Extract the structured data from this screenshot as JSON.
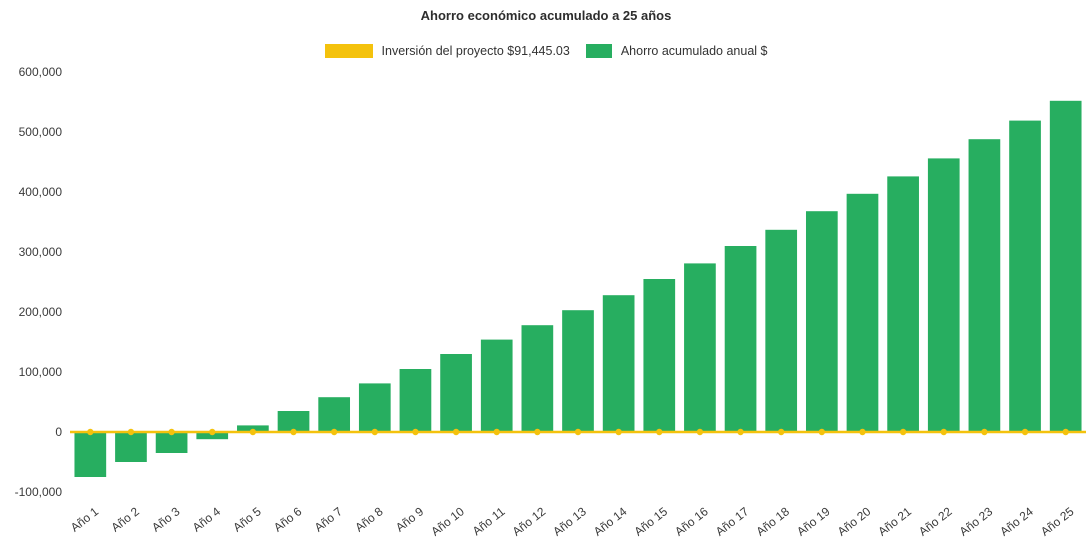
{
  "chart": {
    "title": "Ahorro económico acumulado a 25 años",
    "legend": [
      {
        "label": "Inversión del proyecto $91,445.03",
        "color": "#F4C20D",
        "type": "line"
      },
      {
        "label": "Ahorro acumulado anual $",
        "color": "#27AE60",
        "type": "bar"
      }
    ]
  },
  "chart_data": {
    "type": "bar",
    "title": "Ahorro económico acumulado a 25 años",
    "categories": [
      "Año 1",
      "Año 2",
      "Año 3",
      "Año 4",
      "Año 5",
      "Año 6",
      "Año 7",
      "Año 8",
      "Año 9",
      "Año 10",
      "Año 11",
      "Año 12",
      "Año 13",
      "Año 14",
      "Año 15",
      "Año 16",
      "Año 17",
      "Año 18",
      "Año 19",
      "Año 20",
      "Año 21",
      "Año 22",
      "Año 23",
      "Año 24",
      "Año 25"
    ],
    "series": [
      {
        "name": "Ahorro acumulado anual $",
        "type": "bar",
        "color": "#27AE60",
        "values": [
          -75000,
          -50000,
          -35000,
          -12000,
          11000,
          35000,
          58000,
          81000,
          105000,
          130000,
          154000,
          178000,
          203000,
          228000,
          255000,
          281000,
          310000,
          337000,
          368000,
          397000,
          426000,
          456000,
          488000,
          519000,
          552000
        ]
      },
      {
        "name": "Inversión del proyecto $91,445.03",
        "type": "line",
        "color": "#F4C20D",
        "marker": "circle",
        "values": [
          0,
          0,
          0,
          0,
          0,
          0,
          0,
          0,
          0,
          0,
          0,
          0,
          0,
          0,
          0,
          0,
          0,
          0,
          0,
          0,
          0,
          0,
          0,
          0,
          0
        ]
      }
    ],
    "xlabel": "",
    "ylabel": "",
    "ylim": [
      -100000,
      600000
    ],
    "yticks": [
      -100000,
      0,
      100000,
      200000,
      300000,
      400000,
      500000,
      600000
    ],
    "grid": false,
    "legend_position": "top",
    "x_tick_rotation": -38
  }
}
